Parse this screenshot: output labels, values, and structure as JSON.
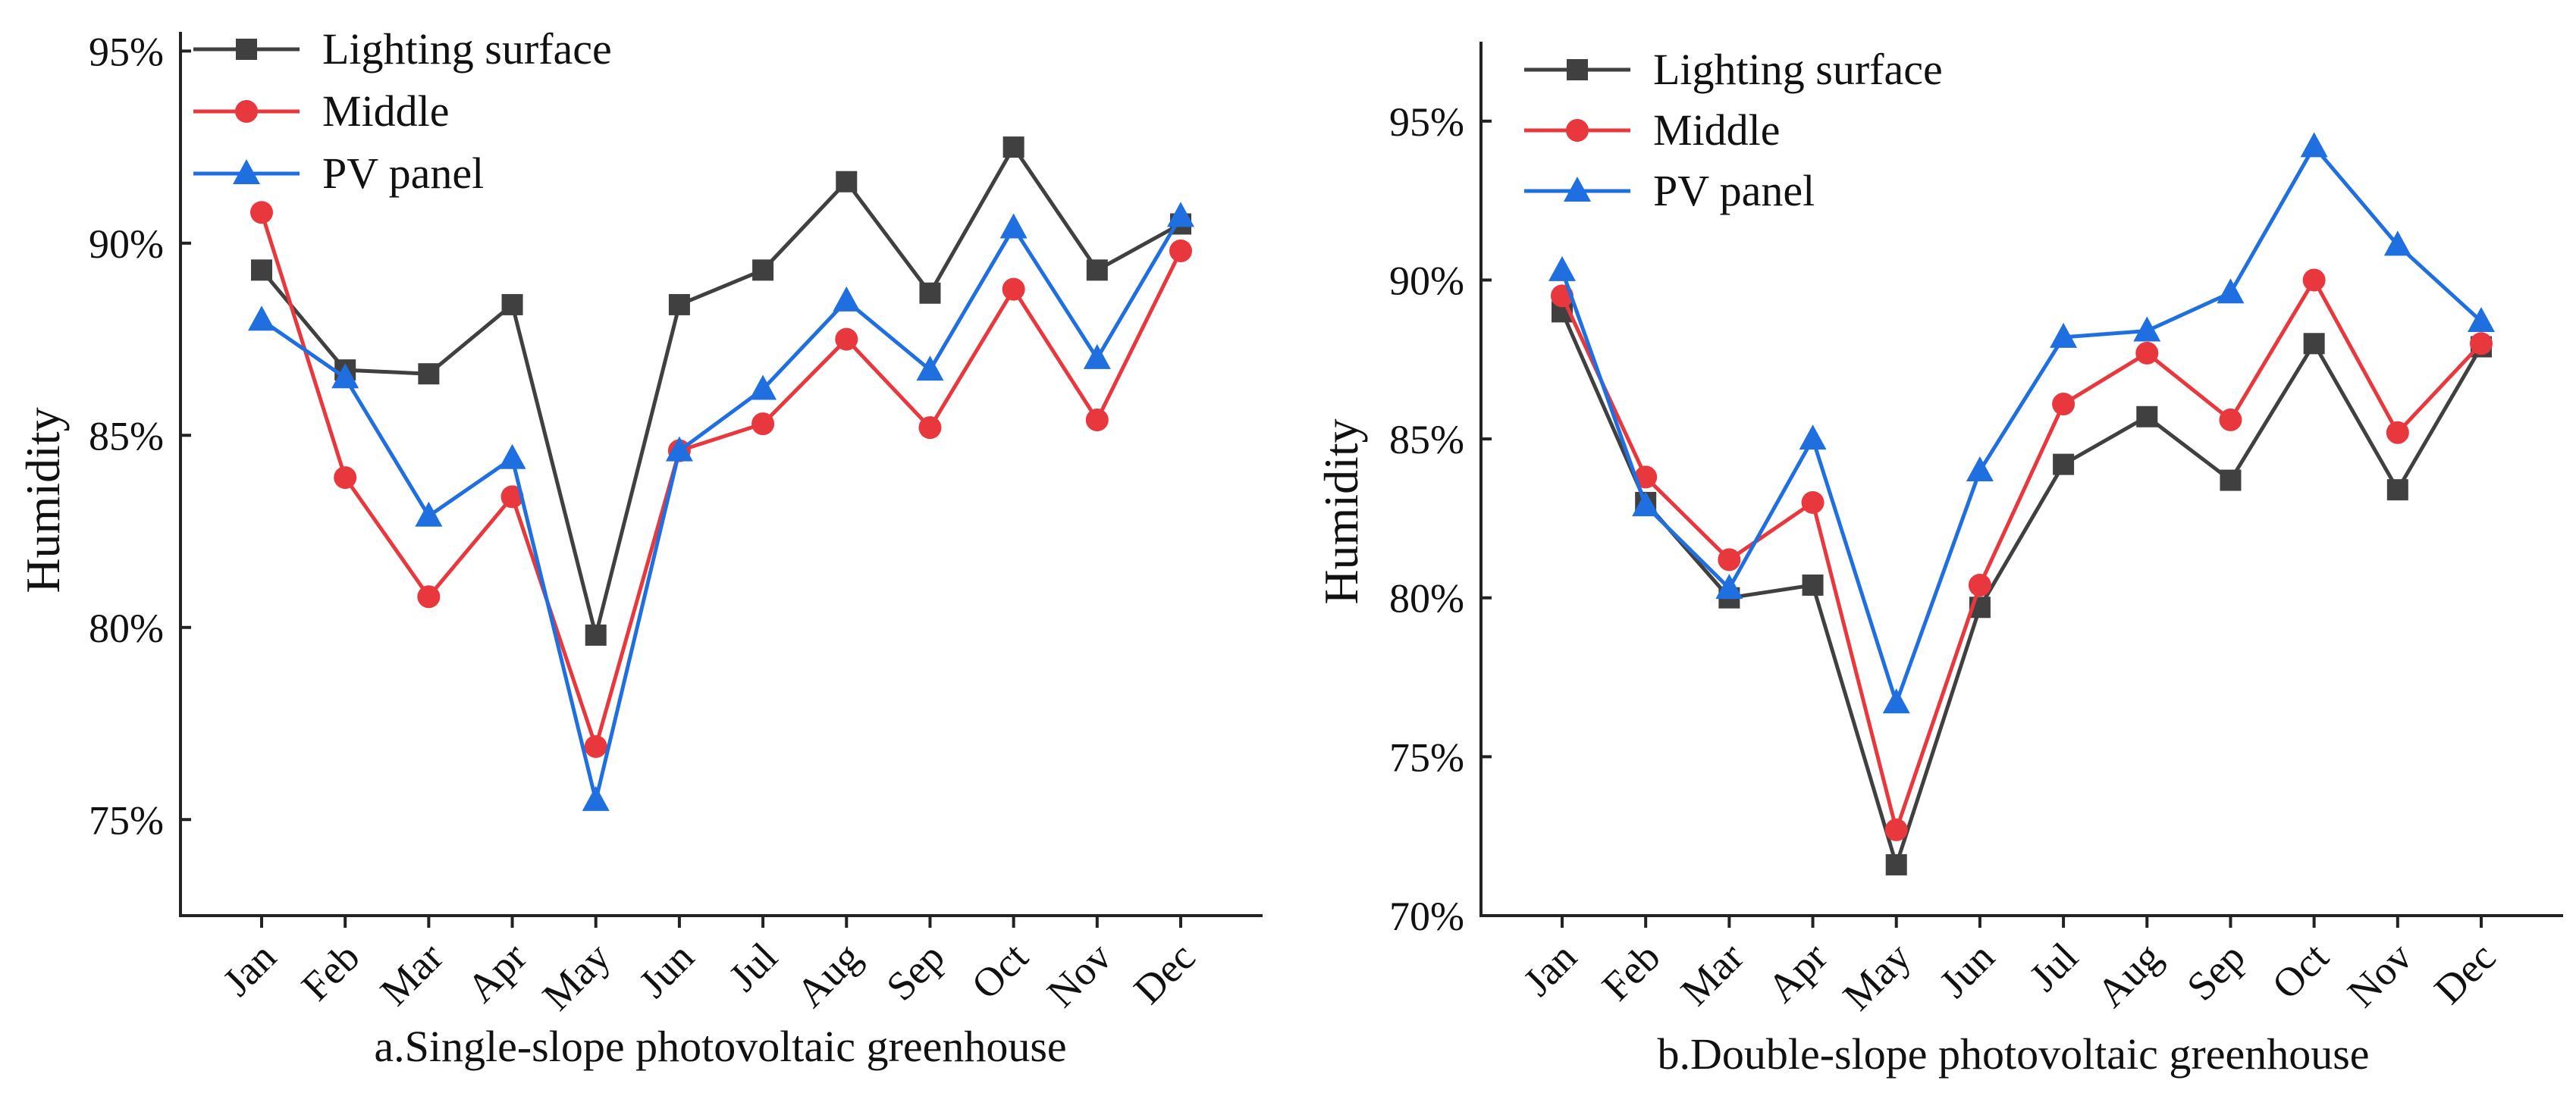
{
  "colors": {
    "lighting": "#404040",
    "middle": "#e8383d",
    "pv": "#1f6fe0",
    "axis": "#222222"
  },
  "chart_data": [
    {
      "type": "line",
      "caption": "a.Single-slope photovoltaic greenhouse",
      "ylabel": "Humidity",
      "xlabel": "",
      "categories": [
        "Jan",
        "Feb",
        "Mar",
        "Apr",
        "May",
        "Jun",
        "Jul",
        "Aug",
        "Sep",
        "Oct",
        "Nov",
        "Dec"
      ],
      "ylim": [
        72.5,
        95.5
      ],
      "yticks": [
        75,
        80,
        85,
        90,
        95
      ],
      "ytick_labels": [
        "75%",
        "80%",
        "85%",
        "90%",
        "95%"
      ],
      "legend_position": "top-left",
      "series": [
        {
          "name": "Lighting surface",
          "marker": "square",
          "color_key": "lighting",
          "values": [
            89.3,
            86.7,
            86.6,
            88.4,
            79.8,
            88.4,
            89.3,
            91.6,
            88.7,
            92.5,
            89.3,
            90.5
          ]
        },
        {
          "name": "Middle",
          "marker": "circle",
          "color_key": "middle",
          "values": [
            90.8,
            83.9,
            80.8,
            83.4,
            76.9,
            84.6,
            85.3,
            87.5,
            85.2,
            88.8,
            85.4,
            89.8
          ]
        },
        {
          "name": "PV panel",
          "marker": "triangle",
          "color_key": "pv",
          "values": [
            88.0,
            86.5,
            82.9,
            84.4,
            75.5,
            84.6,
            86.2,
            88.5,
            86.7,
            90.4,
            87.0,
            90.7
          ]
        }
      ]
    },
    {
      "type": "line",
      "caption": "b.Double-slope photovoltaic greenhouse",
      "ylabel": "Humidity",
      "xlabel": "",
      "categories": [
        "Jan",
        "Feb",
        "Mar",
        "Apr",
        "May",
        "Jun",
        "Jul",
        "Aug",
        "Sep",
        "Oct",
        "Nov",
        "Dec"
      ],
      "ylim": [
        70,
        97.5
      ],
      "yticks": [
        70,
        75,
        80,
        85,
        90,
        95
      ],
      "ytick_labels": [
        "70%",
        "75%",
        "80%",
        "85%",
        "90%",
        "95%"
      ],
      "legend_position": "top-left",
      "series": [
        {
          "name": "Lighting surface",
          "marker": "square",
          "color_key": "lighting",
          "values": [
            89.0,
            83.0,
            80.0,
            80.4,
            71.6,
            79.7,
            84.2,
            85.7,
            83.7,
            88.0,
            83.4,
            87.9
          ]
        },
        {
          "name": "Middle",
          "marker": "circle",
          "color_key": "middle",
          "values": [
            89.5,
            83.8,
            81.2,
            83.0,
            72.7,
            80.4,
            86.1,
            87.7,
            85.6,
            90.0,
            85.2,
            88.0
          ]
        },
        {
          "name": "PV panel",
          "marker": "triangle",
          "color_key": "pv",
          "values": [
            90.3,
            82.9,
            80.3,
            85.0,
            76.7,
            84.0,
            88.2,
            88.4,
            89.6,
            94.2,
            91.1,
            88.7
          ]
        }
      ]
    }
  ]
}
